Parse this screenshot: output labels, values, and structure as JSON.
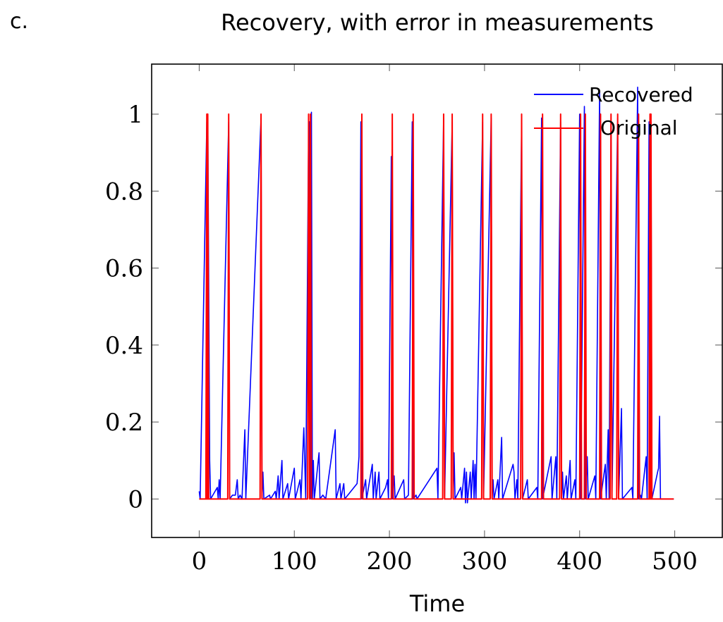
{
  "panel_label": "c.",
  "chart_data": {
    "type": "line",
    "title": "Recovery, with error in measurements",
    "xlabel": "Time",
    "ylabel": "",
    "xlim": [
      -50,
      550
    ],
    "ylim": [
      -0.1,
      1.13
    ],
    "xticks": [
      0,
      100,
      200,
      300,
      400,
      500
    ],
    "xtick_labels": [
      "0",
      "100",
      "200",
      "300",
      "400",
      "500"
    ],
    "yticks": [
      0,
      0.2,
      0.4,
      0.6,
      0.8,
      1
    ],
    "ytick_labels": [
      "0",
      "0.2",
      "0.4",
      "0.6",
      "0.8",
      "1"
    ],
    "grid": false,
    "legend_position": "top-right",
    "series": [
      {
        "name": "Recovered",
        "color": "#0000ff",
        "points": [
          [
            0,
            0.02
          ],
          [
            1,
            0
          ],
          [
            8,
            0.98
          ],
          [
            9,
            1.0
          ],
          [
            11,
            0.1
          ],
          [
            12,
            0
          ],
          [
            19,
            0.03
          ],
          [
            20,
            0
          ],
          [
            21,
            0.05
          ],
          [
            22,
            0
          ],
          [
            31,
            0.98
          ],
          [
            32,
            0
          ],
          [
            35,
            0.01
          ],
          [
            38,
            0.01
          ],
          [
            40,
            0.05
          ],
          [
            41,
            0
          ],
          [
            43,
            0.01
          ],
          [
            45,
            0
          ],
          [
            48,
            0.18
          ],
          [
            49,
            0
          ],
          [
            65,
            0.99
          ],
          [
            66,
            0
          ],
          [
            67,
            0.07
          ],
          [
            68,
            0
          ],
          [
            74,
            0.01
          ],
          [
            75,
            0
          ],
          [
            80,
            0.02
          ],
          [
            81,
            0
          ],
          [
            83,
            0.06
          ],
          [
            84,
            0
          ],
          [
            87,
            0.1
          ],
          [
            88,
            0
          ],
          [
            93,
            0.04
          ],
          [
            94,
            0
          ],
          [
            100,
            0.08
          ],
          [
            101,
            0
          ],
          [
            106,
            0.05
          ],
          [
            107,
            0
          ],
          [
            110,
            0.185
          ],
          [
            112,
            0
          ],
          [
            115,
            0.95
          ],
          [
            116,
            0.98
          ],
          [
            117,
            0
          ],
          [
            118,
            1.005
          ],
          [
            119,
            0
          ],
          [
            120,
            0.1
          ],
          [
            121,
            0
          ],
          [
            126,
            0.12
          ],
          [
            127,
            0
          ],
          [
            130,
            0.01
          ],
          [
            133,
            0
          ],
          [
            143,
            0.18
          ],
          [
            144,
            0
          ],
          [
            148,
            0.04
          ],
          [
            149,
            0
          ],
          [
            152,
            0.04
          ],
          [
            153,
            0
          ],
          [
            166,
            0.04
          ],
          [
            168,
            0.11
          ],
          [
            170,
            0.98
          ],
          [
            171,
            0
          ],
          [
            175,
            0.05
          ],
          [
            176,
            0
          ],
          [
            182,
            0.09
          ],
          [
            183,
            0
          ],
          [
            185,
            0.07
          ],
          [
            186,
            0
          ],
          [
            189,
            0.07
          ],
          [
            190,
            0
          ],
          [
            196,
            0.03
          ],
          [
            198,
            0.05
          ],
          [
            199,
            0
          ],
          [
            202,
            0.89
          ],
          [
            203,
            0
          ],
          [
            205,
            0.06
          ],
          [
            206,
            0
          ],
          [
            215,
            0.05
          ],
          [
            216,
            0
          ],
          [
            220,
            0.01
          ],
          [
            224,
            0.98
          ],
          [
            225,
            0
          ],
          [
            228,
            0.01
          ],
          [
            229,
            0
          ],
          [
            250,
            0.08
          ],
          [
            251,
            0
          ],
          [
            257,
            0.99
          ],
          [
            258,
            0
          ],
          [
            266,
            0.98
          ],
          [
            267,
            0
          ],
          [
            268,
            0.12
          ],
          [
            269,
            0
          ],
          [
            275,
            0.03
          ],
          [
            276,
            0
          ],
          [
            279,
            0.08
          ],
          [
            280,
            -0.01
          ],
          [
            281,
            0.07
          ],
          [
            282,
            -0.01
          ],
          [
            285,
            0.07
          ],
          [
            286,
            0
          ],
          [
            288,
            0.1
          ],
          [
            289,
            0
          ],
          [
            290,
            0.09
          ],
          [
            291,
            0
          ],
          [
            298,
            0.98
          ],
          [
            299,
            0
          ],
          [
            307,
            0.99
          ],
          [
            308,
            0
          ],
          [
            309,
            0.05
          ],
          [
            310,
            0
          ],
          [
            314,
            0.05
          ],
          [
            315,
            0
          ],
          [
            318,
            0.16
          ],
          [
            319,
            0
          ],
          [
            330,
            0.09
          ],
          [
            331,
            0.07
          ],
          [
            332,
            0
          ],
          [
            334,
            0.05
          ],
          [
            335,
            0
          ],
          [
            339,
            0.98
          ],
          [
            340,
            0
          ],
          [
            345,
            0.05
          ],
          [
            346,
            0
          ],
          [
            355,
            0.03
          ],
          [
            356,
            0
          ],
          [
            360,
            0.99
          ],
          [
            361,
            0
          ],
          [
            370,
            0.11
          ],
          [
            371,
            0
          ],
          [
            375,
            0.11
          ],
          [
            376,
            0
          ],
          [
            380,
            0.98
          ],
          [
            381,
            0
          ],
          [
            382,
            0.07
          ],
          [
            383,
            0
          ],
          [
            386,
            0.06
          ],
          [
            387,
            0
          ],
          [
            390,
            0.1
          ],
          [
            391,
            0
          ],
          [
            395,
            0.05
          ],
          [
            396,
            0
          ],
          [
            400,
            1.0
          ],
          [
            401,
            0
          ],
          [
            405,
            1.02
          ],
          [
            406,
            0
          ],
          [
            408,
            0.11
          ],
          [
            409,
            0
          ],
          [
            416,
            0.06
          ],
          [
            417,
            0
          ],
          [
            421,
            1.06
          ],
          [
            422,
            0
          ],
          [
            427,
            0.09
          ],
          [
            428,
            0
          ],
          [
            430,
            0.18
          ],
          [
            431,
            0
          ],
          [
            433,
            0.98
          ],
          [
            434,
            0
          ],
          [
            440,
            0.99
          ],
          [
            441,
            0
          ],
          [
            444,
            0.235
          ],
          [
            445,
            0
          ],
          [
            455,
            0.03
          ],
          [
            456,
            0
          ],
          [
            461,
            1.07
          ],
          [
            462,
            0
          ],
          [
            464,
            0.01
          ],
          [
            465,
            0
          ],
          [
            470,
            0.11
          ],
          [
            471,
            0
          ],
          [
            473,
            0.98
          ],
          [
            474,
            0.75
          ],
          [
            475,
            0.98
          ],
          [
            476,
            0
          ],
          [
            482,
            0.07
          ],
          [
            483,
            0.08
          ],
          [
            484,
            0.215
          ],
          [
            485,
            0
          ],
          [
            499,
            0
          ]
        ]
      },
      {
        "name": "Original",
        "color": "#ff0000",
        "spikes": [
          8,
          9,
          31,
          65,
          115,
          117,
          171,
          203,
          225,
          257,
          266,
          298,
          307,
          339,
          361,
          380,
          401,
          406,
          422,
          433,
          440,
          462,
          474,
          475
        ],
        "spike_value": 1,
        "baseline": 0,
        "x_range": [
          0,
          499
        ]
      }
    ]
  }
}
